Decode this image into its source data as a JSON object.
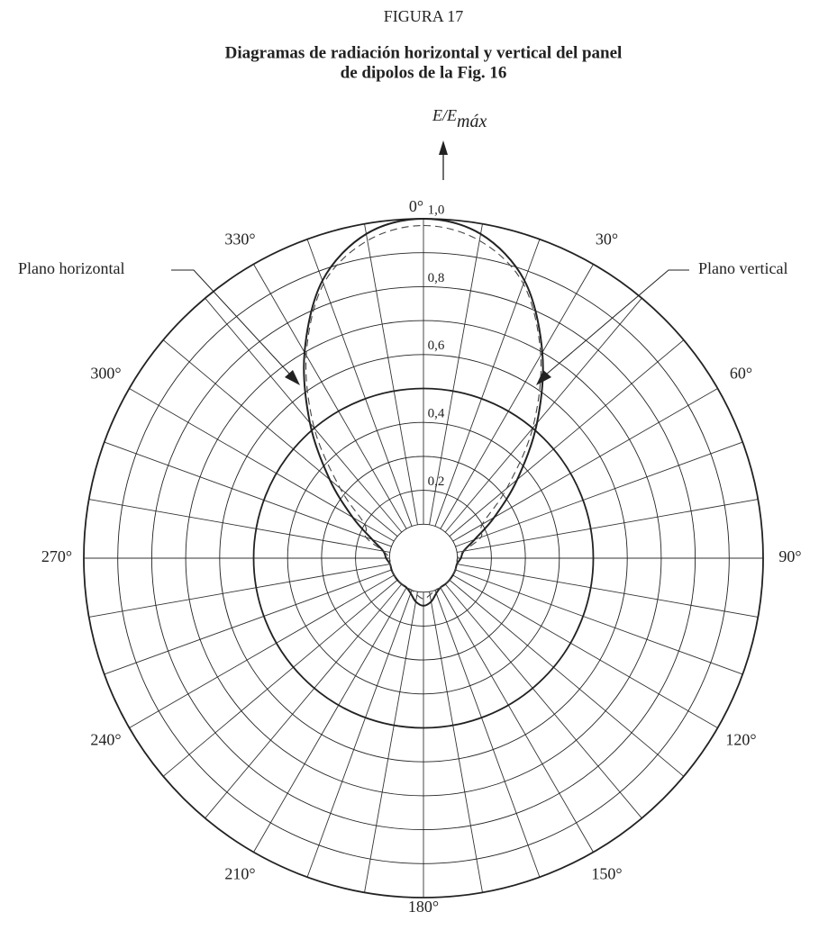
{
  "chart_data": {
    "type": "polar",
    "title": "FIGURA 17",
    "subtitle": [
      "Diagramas de radiación horizontal y vertical del panel",
      "de dipolos de la Fig. 16"
    ],
    "r_label": {
      "main": "E/E",
      "sub": "máx"
    },
    "rlim": [
      0,
      1
    ],
    "rticks": [
      {
        "value": 0.2,
        "label": "0,2"
      },
      {
        "value": 0.4,
        "label": "0,4"
      },
      {
        "value": 0.6,
        "label": "0,6"
      },
      {
        "value": 0.8,
        "label": "0,8"
      },
      {
        "value": 1,
        "label": "1,0"
      }
    ],
    "rgrid": [
      0.1,
      0.2,
      0.3,
      0.4,
      0.5,
      0.6,
      0.7,
      0.8,
      0.9,
      1
    ],
    "rgrid_bold": 0.5,
    "thetagrid": [
      0,
      10,
      20,
      30,
      40,
      50,
      60,
      70,
      80,
      90,
      100,
      110,
      120,
      130,
      140,
      150,
      160,
      170,
      180,
      190,
      200,
      210,
      220,
      230,
      240,
      250,
      260,
      270,
      280,
      290,
      300,
      310,
      320,
      330,
      340,
      350
    ],
    "thetaticks": [
      {
        "value": 0,
        "label": "0°"
      },
      {
        "value": 30,
        "label": "30°"
      },
      {
        "value": 60,
        "label": "60°"
      },
      {
        "value": 90,
        "label": "90°"
      },
      {
        "value": 120,
        "label": "120°"
      },
      {
        "value": 150,
        "label": "150°"
      },
      {
        "value": 180,
        "label": "180°"
      },
      {
        "value": 210,
        "label": "210°"
      },
      {
        "value": 240,
        "label": "240°"
      },
      {
        "value": 270,
        "label": "270°"
      },
      {
        "value": 300,
        "label": "300°"
      },
      {
        "value": 330,
        "label": "330°"
      }
    ],
    "series": [
      {
        "name": "Plano horizontal",
        "color": "#222222",
        "dash": false,
        "theta": [
          0,
          10,
          20,
          30,
          40,
          50,
          60,
          70,
          80,
          90,
          100,
          110,
          120,
          130,
          140,
          150,
          160,
          170,
          180,
          190,
          200,
          210,
          220,
          230,
          240,
          250,
          260,
          270,
          280,
          290,
          300,
          310,
          320,
          330,
          340,
          350
        ],
        "values": [
          1.0,
          0.97,
          0.87,
          0.7,
          0.52,
          0.36,
          0.24,
          0.16,
          0.12,
          0.11,
          0.1,
          0.1,
          0.1,
          0.1,
          0.1,
          0.1,
          0.11,
          0.13,
          0.14,
          0.13,
          0.11,
          0.1,
          0.1,
          0.1,
          0.1,
          0.1,
          0.1,
          0.11,
          0.12,
          0.16,
          0.24,
          0.36,
          0.52,
          0.7,
          0.87,
          0.97
        ]
      },
      {
        "name": "Plano vertical",
        "color": "#444444",
        "dash": true,
        "theta": [
          0,
          10,
          20,
          30,
          40,
          50,
          60,
          70,
          80,
          90,
          100,
          110,
          120,
          130,
          140,
          150,
          160,
          170,
          180,
          190,
          200,
          210,
          220,
          230,
          240,
          250,
          260,
          270,
          280,
          290,
          300,
          310,
          320,
          330,
          340,
          350
        ],
        "values": [
          0.98,
          0.95,
          0.86,
          0.69,
          0.5,
          0.32,
          0.2,
          0.18,
          0.12,
          0.1,
          0.1,
          0.1,
          0.1,
          0.1,
          0.1,
          0.1,
          0.1,
          0.11,
          0.12,
          0.11,
          0.1,
          0.1,
          0.1,
          0.1,
          0.1,
          0.1,
          0.1,
          0.1,
          0.12,
          0.18,
          0.2,
          0.32,
          0.5,
          0.69,
          0.86,
          0.95
        ]
      }
    ]
  }
}
